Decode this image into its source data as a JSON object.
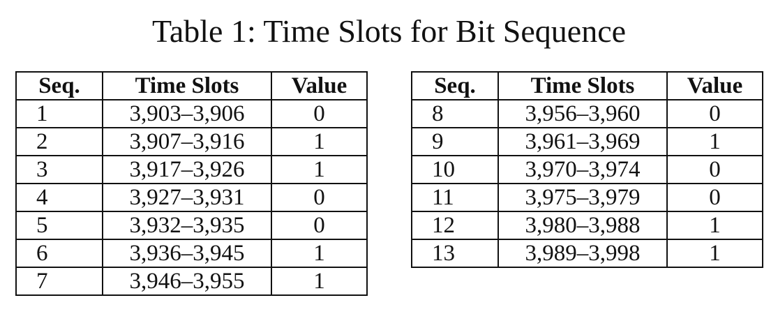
{
  "caption": "Table 1: Time Slots for Bit Sequence",
  "headers": {
    "seq": "Seq.",
    "slots": "Time Slots",
    "value": "Value"
  },
  "left_rows": [
    {
      "seq": "1",
      "slots": "3,903–3,906",
      "value": "0"
    },
    {
      "seq": "2",
      "slots": "3,907–3,916",
      "value": "1"
    },
    {
      "seq": "3",
      "slots": "3,917–3,926",
      "value": "1"
    },
    {
      "seq": "4",
      "slots": "3,927–3,931",
      "value": "0"
    },
    {
      "seq": "5",
      "slots": "3,932–3,935",
      "value": "0"
    },
    {
      "seq": "6",
      "slots": "3,936–3,945",
      "value": "1"
    },
    {
      "seq": "7",
      "slots": "3,946–3,955",
      "value": "1"
    }
  ],
  "right_rows": [
    {
      "seq": "8",
      "slots": "3,956–3,960",
      "value": "0"
    },
    {
      "seq": "9",
      "slots": "3,961–3,969",
      "value": "1"
    },
    {
      "seq": "10",
      "slots": "3,970–3,974",
      "value": "0"
    },
    {
      "seq": "11",
      "slots": "3,975–3,979",
      "value": "0"
    },
    {
      "seq": "12",
      "slots": "3,980–3,988",
      "value": "1"
    },
    {
      "seq": "13",
      "slots": "3,989–3,998",
      "value": "1"
    }
  ]
}
